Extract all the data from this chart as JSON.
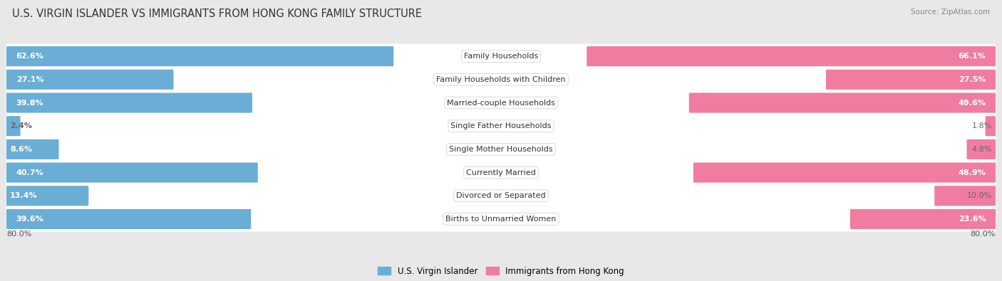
{
  "title": "U.S. VIRGIN ISLANDER VS IMMIGRANTS FROM HONG KONG FAMILY STRUCTURE",
  "source": "Source: ZipAtlas.com",
  "categories": [
    "Family Households",
    "Family Households with Children",
    "Married-couple Households",
    "Single Father Households",
    "Single Mother Households",
    "Currently Married",
    "Divorced or Separated",
    "Births to Unmarried Women"
  ],
  "left_values": [
    62.6,
    27.1,
    39.8,
    2.4,
    8.6,
    40.7,
    13.4,
    39.6
  ],
  "right_values": [
    66.1,
    27.5,
    49.6,
    1.8,
    4.8,
    48.9,
    10.0,
    23.6
  ],
  "left_color": "#6aaed6",
  "right_color": "#f07ca0",
  "left_label": "U.S. Virgin Islander",
  "right_label": "Immigrants from Hong Kong",
  "axis_max": 80.0,
  "bg_color": "#e8e8e8",
  "title_fontsize": 10.5,
  "source_fontsize": 7.5,
  "label_fontsize": 8,
  "value_fontsize": 8,
  "axis_label_fontsize": 8
}
